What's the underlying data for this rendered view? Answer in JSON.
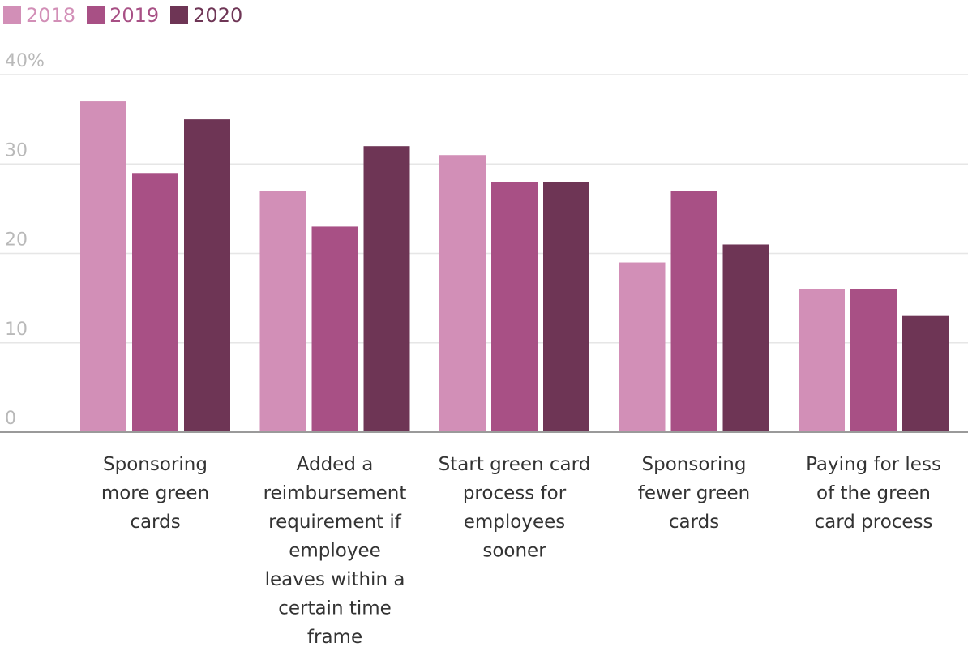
{
  "chart_data": {
    "type": "bar",
    "categories": [
      "Sponsoring more green cards",
      "Added a reimbursement requirement if employee leaves within a certain time frame",
      "Start green card process for employees sooner",
      "Sponsoring fewer green cards",
      "Paying for less of the green card process"
    ],
    "category_lines": [
      [
        "Sponsoring",
        "more green",
        "cards"
      ],
      [
        "Added a",
        "reimbursement",
        "requirement if",
        "employee",
        "leaves within a",
        "certain time",
        "frame"
      ],
      [
        "Start green card",
        "process for",
        "employees",
        "sooner"
      ],
      [
        "Sponsoring",
        "fewer green",
        "cards"
      ],
      [
        "Paying for less",
        "of the green",
        "card process"
      ]
    ],
    "series": [
      {
        "name": "2018",
        "color": "#d28fb7",
        "values": [
          37,
          27,
          31,
          19,
          16
        ]
      },
      {
        "name": "2019",
        "color": "#a85085",
        "values": [
          29,
          23,
          28,
          27,
          16
        ]
      },
      {
        "name": "2020",
        "color": "#6e3555",
        "values": [
          35,
          32,
          28,
          21,
          13
        ]
      }
    ],
    "y_ticks": [
      {
        "value": 0,
        "label": "0"
      },
      {
        "value": 10,
        "label": "10"
      },
      {
        "value": 20,
        "label": "20"
      },
      {
        "value": 30,
        "label": "30"
      },
      {
        "value": 40,
        "label": "40%"
      }
    ],
    "ylim": [
      0,
      40
    ],
    "grid": true,
    "legend_position": "top-left",
    "title": "",
    "xlabel": "",
    "ylabel": ""
  },
  "colors": {
    "tick_text": "#b9b9b9",
    "gridline": "#e6e6e6",
    "baseline": "#9a9a9a",
    "category_text": "#333333"
  }
}
